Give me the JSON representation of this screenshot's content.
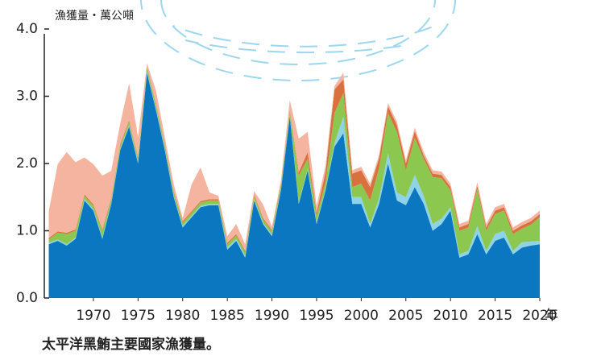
{
  "chart_data": {
    "type": "stacked-area",
    "y_label": "漁獲量・萬公噸",
    "x_unit": "年",
    "caption": "太平洋黑鮪主要國家漁獲量。",
    "x": [
      1965,
      1966,
      1967,
      1968,
      1969,
      1970,
      1971,
      1972,
      1973,
      1974,
      1975,
      1976,
      1977,
      1978,
      1979,
      1980,
      1981,
      1982,
      1983,
      1984,
      1985,
      1986,
      1987,
      1988,
      1989,
      1990,
      1991,
      1992,
      1993,
      1994,
      1995,
      1996,
      1997,
      1998,
      1999,
      2000,
      2001,
      2002,
      2003,
      2004,
      2005,
      2006,
      2007,
      2008,
      2009,
      2010,
      2011,
      2012,
      2013,
      2014,
      2015,
      2016,
      2017,
      2018,
      2019,
      2020
    ],
    "series": [
      {
        "color": "#0a77c0",
        "values": [
          0.8,
          0.85,
          0.78,
          0.88,
          1.45,
          1.3,
          0.88,
          1.4,
          2.2,
          2.55,
          2.0,
          3.35,
          2.8,
          2.2,
          1.5,
          1.05,
          1.2,
          1.35,
          1.38,
          1.38,
          0.72,
          0.85,
          0.6,
          1.45,
          1.1,
          0.92,
          1.6,
          2.7,
          1.4,
          1.9,
          1.1,
          1.6,
          2.25,
          2.45,
          1.4,
          1.4,
          1.05,
          1.4,
          2.0,
          1.45,
          1.38,
          1.65,
          1.4,
          1.0,
          1.1,
          1.3,
          0.6,
          0.65,
          0.95,
          0.65,
          0.85,
          0.9,
          0.65,
          0.75,
          0.78,
          0.8
        ]
      },
      {
        "color": "#8fd3e8",
        "values": [
          0.02,
          0.02,
          0.02,
          0.02,
          0.02,
          0.02,
          0.02,
          0.02,
          0.02,
          0.02,
          0.02,
          0.02,
          0.02,
          0.02,
          0.02,
          0.02,
          0.02,
          0.02,
          0.02,
          0.02,
          0.03,
          0.03,
          0.03,
          0.02,
          0.02,
          0.02,
          0.02,
          0.02,
          0.02,
          0.02,
          0.02,
          0.02,
          0.05,
          0.25,
          0.1,
          0.1,
          0.05,
          0.08,
          0.15,
          0.12,
          0.12,
          0.18,
          0.12,
          0.1,
          0.08,
          0.05,
          0.05,
          0.05,
          0.12,
          0.05,
          0.1,
          0.1,
          0.05,
          0.08,
          0.06,
          0.05
        ]
      },
      {
        "color": "#8cc850",
        "values": [
          0.05,
          0.1,
          0.15,
          0.1,
          0.05,
          0.05,
          0.1,
          0.05,
          0.05,
          0.05,
          0.05,
          0.05,
          0.05,
          0.05,
          0.05,
          0.05,
          0.05,
          0.05,
          0.05,
          0.05,
          0.05,
          0.05,
          0.05,
          0.05,
          0.05,
          0.05,
          0.05,
          0.05,
          0.4,
          0.15,
          0.1,
          0.1,
          0.45,
          0.35,
          0.15,
          0.2,
          0.35,
          0.45,
          0.6,
          0.9,
          0.4,
          0.55,
          0.55,
          0.7,
          0.6,
          0.25,
          0.35,
          0.35,
          0.55,
          0.3,
          0.3,
          0.3,
          0.25,
          0.2,
          0.25,
          0.35
        ]
      },
      {
        "color": "#d9713e",
        "values": [
          0.02,
          0.02,
          0.02,
          0.02,
          0.02,
          0.02,
          0.02,
          0.02,
          0.02,
          0.02,
          0.02,
          0.02,
          0.02,
          0.02,
          0.02,
          0.02,
          0.02,
          0.02,
          0.02,
          0.02,
          0.02,
          0.02,
          0.02,
          0.02,
          0.02,
          0.02,
          0.02,
          0.02,
          0.05,
          0.1,
          0.05,
          0.15,
          0.35,
          0.2,
          0.2,
          0.2,
          0.2,
          0.15,
          0.1,
          0.1,
          0.1,
          0.1,
          0.05,
          0.05,
          0.05,
          0.05,
          0.05,
          0.05,
          0.05,
          0.05,
          0.05,
          0.05,
          0.05,
          0.05,
          0.05,
          0.05
        ]
      },
      {
        "color": "#f5b4a0",
        "values": [
          0.4,
          1.0,
          1.2,
          1.0,
          0.55,
          0.6,
          0.8,
          0.4,
          0.3,
          0.55,
          0.3,
          0.05,
          0.2,
          0.1,
          0.1,
          0.05,
          0.4,
          0.5,
          0.1,
          0.05,
          0.1,
          0.15,
          0.1,
          0.05,
          0.2,
          0.05,
          0.05,
          0.15,
          0.5,
          0.3,
          0.1,
          0.1,
          0.05,
          0.1,
          0.05,
          0.05,
          0.05,
          0.05,
          0.05,
          0.05,
          0.05,
          0.05,
          0.05,
          0.05,
          0.05,
          0.05,
          0.05,
          0.05,
          0.05,
          0.05,
          0.05,
          0.05,
          0.05,
          0.05,
          0.05,
          0.05
        ]
      }
    ],
    "xlim": [
      1964.5,
      2020
    ],
    "xticks": [
      1970,
      1975,
      1980,
      1985,
      1990,
      1995,
      2000,
      2005,
      2010,
      2015,
      2020
    ],
    "ylim": [
      0,
      4
    ],
    "yticks": [
      {
        "value": 0,
        "label": "0.0"
      },
      {
        "value": 1,
        "label": "1.0"
      },
      {
        "value": 2,
        "label": "2.0"
      },
      {
        "value": 3,
        "label": "3.0"
      },
      {
        "value": 4,
        "label": "4.0"
      }
    ]
  }
}
